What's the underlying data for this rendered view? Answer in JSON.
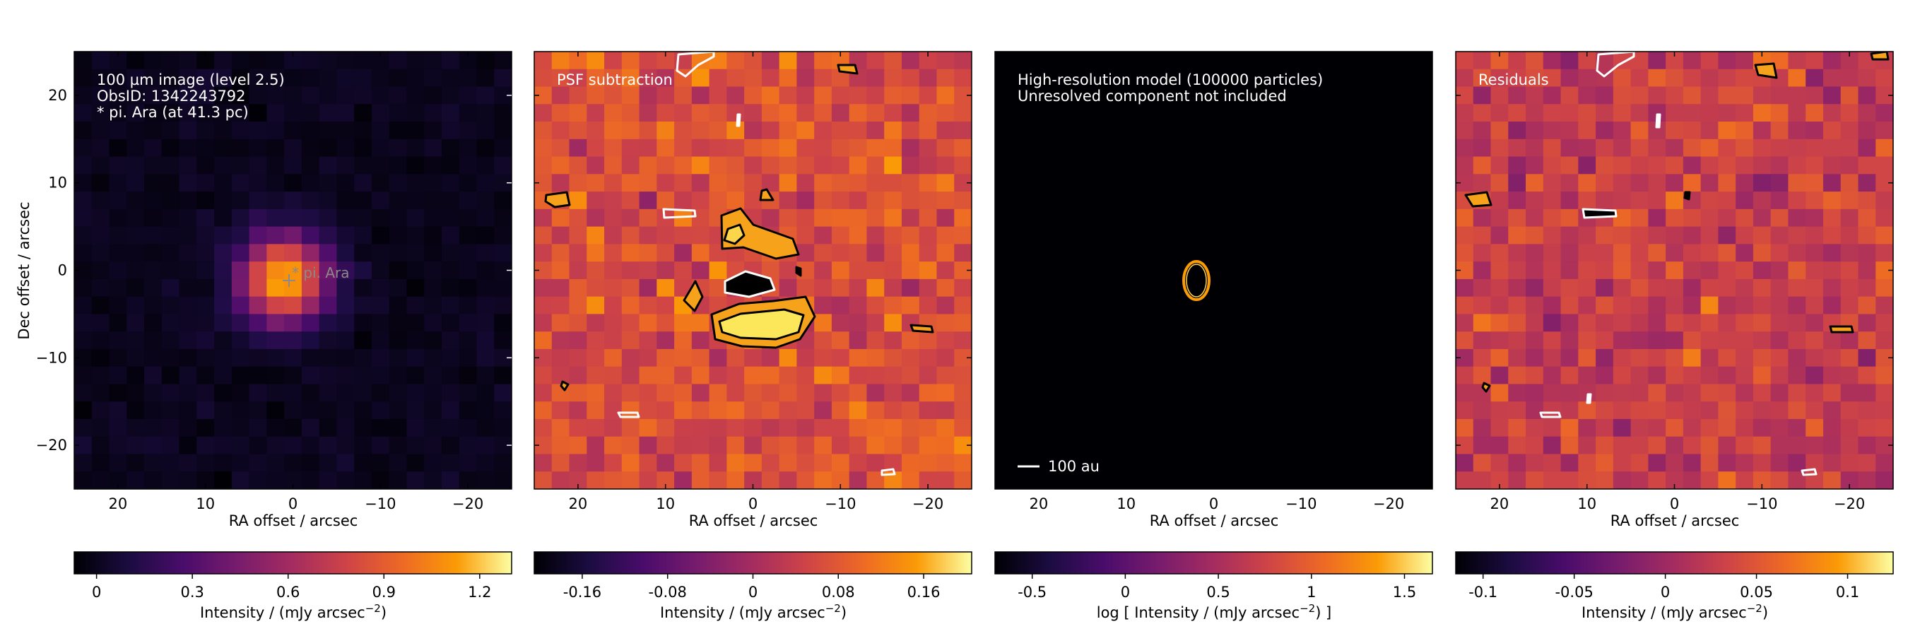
{
  "chart_data": [
    {
      "type": "heatmap",
      "panel": "observation",
      "annotation_lines": [
        "100 µm image (level 2.5)",
        "ObsID: 1342243792",
        "* pi. Ara (at 41.3 pc)"
      ],
      "star_label": "* pi. Ara",
      "star_position_arcsec": [
        1,
        -1
      ],
      "xlabel": "RA offset / arcsec",
      "ylabel": "Dec offset / arcsec",
      "xlim": [
        25,
        -25
      ],
      "ylim": [
        -25,
        25
      ],
      "x_ticks": [
        20,
        10,
        0,
        -10,
        -20
      ],
      "y_ticks": [
        20,
        10,
        0,
        -10,
        -20
      ],
      "colormap": "inferno",
      "colorbar": {
        "label": "Intensity / (mJy arcsec",
        "label_sup": "−2",
        "label_tail": ")",
        "ticks": [
          "0",
          "0.3",
          "0.6",
          "0.9",
          "1.2"
        ],
        "tick_values": [
          0,
          0.3,
          0.6,
          0.9,
          1.2
        ],
        "range": [
          -0.07,
          1.3
        ]
      },
      "peak_intensity": 1.2
    },
    {
      "type": "heatmap",
      "panel": "psf_subtraction",
      "annotation_lines": [
        "PSF subtraction"
      ],
      "xlabel": "RA offset / arcsec",
      "xlim": [
        25,
        -25
      ],
      "ylim": [
        -25,
        25
      ],
      "x_ticks": [
        20,
        10,
        0,
        -10,
        -20
      ],
      "colormap": "inferno",
      "colorbar": {
        "label": "Intensity / (mJy arcsec",
        "label_sup": "−2",
        "label_tail": ")",
        "ticks": [
          "-0.16",
          "-0.08",
          "0",
          "0.08",
          "0.16"
        ],
        "tick_values": [
          -0.16,
          -0.08,
          0,
          0.08,
          0.16
        ],
        "range": [
          -0.205,
          0.205
        ]
      },
      "contours": "positive (black) and negative (white) significance levels"
    },
    {
      "type": "heatmap",
      "panel": "model",
      "annotation_lines": [
        "High-resolution model (100000 particles)",
        "Unresolved component not included"
      ],
      "scale_bar_label": "100 au",
      "xlabel": "RA offset / arcsec",
      "xlim": [
        25,
        -25
      ],
      "ylim": [
        -25,
        25
      ],
      "x_ticks": [
        20,
        10,
        0,
        -10,
        -20
      ],
      "colormap": "inferno",
      "colorbar": {
        "label": "log [ Intensity / (mJy arcsec",
        "label_sup": "−2",
        "label_tail": ") ]",
        "ticks": [
          "-0.5",
          "0",
          "0.5",
          "1",
          "1.5"
        ],
        "tick_values": [
          -0.5,
          0,
          0.5,
          1,
          1.5
        ],
        "range": [
          -0.7,
          1.65
        ]
      },
      "ring_center_arcsec": [
        2,
        -1
      ],
      "ring_radii_arcsec": [
        1.4,
        2.1
      ]
    },
    {
      "type": "heatmap",
      "panel": "residuals",
      "annotation_lines": [
        "Residuals"
      ],
      "xlabel": "RA offset / arcsec",
      "xlim": [
        25,
        -25
      ],
      "ylim": [
        -25,
        25
      ],
      "x_ticks": [
        20,
        10,
        0,
        -10,
        -20
      ],
      "colormap": "inferno",
      "colorbar": {
        "label": "Intensity / (mJy arcsec",
        "label_sup": "−2",
        "label_tail": ")",
        "ticks": [
          "-0.1",
          "-0.05",
          "0",
          "0.05",
          "0.1"
        ],
        "tick_values": [
          -0.1,
          -0.05,
          0,
          0.05,
          0.1
        ],
        "range": [
          -0.115,
          0.125
        ]
      }
    }
  ],
  "colors": {
    "annotation_text": "#ffffff",
    "star_label": "#8a8a8a",
    "positive_contour": "#000000",
    "negative_contour": "#ffffff"
  }
}
